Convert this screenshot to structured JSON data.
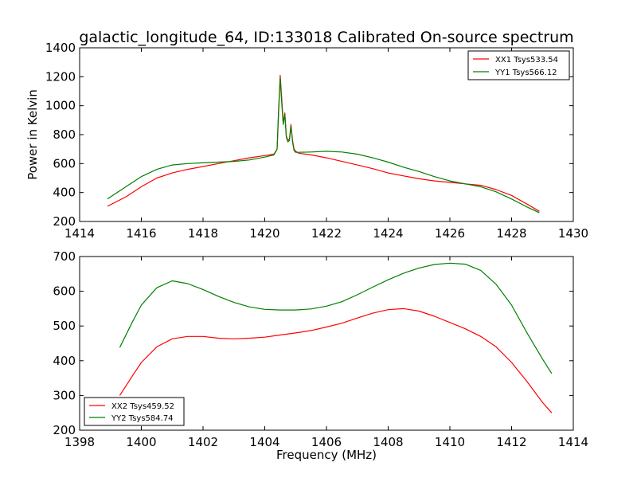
{
  "chart_data": [
    {
      "type": "line",
      "title": "galactic_longitude_64, ID:133018 Calibrated On-source spectrum",
      "xlabel": "",
      "ylabel": "Power in Kelvin",
      "xlim": [
        1414,
        1430
      ],
      "ylim": [
        200,
        1400
      ],
      "xticks": [
        1414,
        1416,
        1418,
        1420,
        1422,
        1424,
        1426,
        1428,
        1430
      ],
      "yticks": [
        200,
        400,
        600,
        800,
        1000,
        1200,
        1400
      ],
      "legend": "top-right",
      "series": [
        {
          "name": "XX1 Tsys533.54",
          "color": "#ff0000",
          "x": [
            1414.9,
            1415.5,
            1416.0,
            1416.5,
            1417.0,
            1417.5,
            1418.0,
            1418.5,
            1419.0,
            1419.5,
            1420.0,
            1420.3,
            1420.4,
            1420.45,
            1420.5,
            1420.55,
            1420.6,
            1420.65,
            1420.7,
            1420.75,
            1420.8,
            1420.85,
            1420.9,
            1420.95,
            1421.0,
            1421.1,
            1421.5,
            1422.0,
            1422.5,
            1423.0,
            1423.5,
            1424.0,
            1424.5,
            1425.0,
            1425.5,
            1426.0,
            1426.5,
            1427.0,
            1427.5,
            1428.0,
            1428.5,
            1428.9
          ],
          "values": [
            305,
            370,
            440,
            500,
            535,
            560,
            580,
            600,
            620,
            640,
            655,
            665,
            700,
            950,
            1210,
            1050,
            880,
            950,
            790,
            760,
            770,
            870,
            760,
            700,
            685,
            672,
            660,
            640,
            615,
            590,
            565,
            535,
            515,
            495,
            480,
            470,
            460,
            450,
            420,
            380,
            320,
            270
          ]
        },
        {
          "name": "YY1 Tsys566.12",
          "color": "#008000",
          "x": [
            1414.9,
            1415.5,
            1416.0,
            1416.5,
            1417.0,
            1417.5,
            1418.0,
            1418.5,
            1419.0,
            1419.5,
            1420.0,
            1420.3,
            1420.4,
            1420.45,
            1420.5,
            1420.55,
            1420.6,
            1420.65,
            1420.7,
            1420.75,
            1420.8,
            1420.85,
            1420.9,
            1420.95,
            1421.0,
            1421.1,
            1421.5,
            1422.0,
            1422.5,
            1423.0,
            1423.5,
            1424.0,
            1424.5,
            1425.0,
            1425.5,
            1426.0,
            1426.5,
            1427.0,
            1427.5,
            1428.0,
            1428.5,
            1428.9
          ],
          "values": [
            355,
            440,
            510,
            560,
            590,
            600,
            605,
            610,
            615,
            625,
            645,
            660,
            700,
            980,
            1190,
            1020,
            870,
            940,
            780,
            750,
            760,
            860,
            750,
            690,
            678,
            678,
            680,
            685,
            680,
            665,
            640,
            610,
            575,
            545,
            510,
            480,
            460,
            440,
            405,
            355,
            300,
            260
          ]
        }
      ]
    },
    {
      "type": "line",
      "title": "",
      "xlabel": "Frequency (MHz)",
      "ylabel": "",
      "xlim": [
        1398,
        1414
      ],
      "ylim": [
        200,
        700
      ],
      "xticks": [
        1398,
        1400,
        1402,
        1404,
        1406,
        1408,
        1410,
        1412,
        1414
      ],
      "yticks": [
        200,
        300,
        400,
        500,
        600,
        700
      ],
      "legend": "bottom-left",
      "series": [
        {
          "name": "XX2 Tsys459.52",
          "color": "#ff0000",
          "x": [
            1399.3,
            1399.7,
            1400.0,
            1400.5,
            1401.0,
            1401.5,
            1402.0,
            1402.5,
            1403.0,
            1403.5,
            1404.0,
            1404.5,
            1405.0,
            1405.5,
            1406.0,
            1406.5,
            1407.0,
            1407.5,
            1408.0,
            1408.5,
            1409.0,
            1409.5,
            1410.0,
            1410.5,
            1411.0,
            1411.5,
            1412.0,
            1412.5,
            1413.0,
            1413.3
          ],
          "values": [
            300,
            355,
            395,
            440,
            463,
            470,
            470,
            465,
            463,
            465,
            468,
            474,
            480,
            487,
            497,
            508,
            523,
            537,
            547,
            550,
            543,
            528,
            510,
            492,
            470,
            440,
            395,
            340,
            280,
            250
          ]
        },
        {
          "name": "YY2 Tsys584.74",
          "color": "#008000",
          "x": [
            1399.3,
            1399.7,
            1400.0,
            1400.5,
            1401.0,
            1401.5,
            1402.0,
            1402.5,
            1403.0,
            1403.5,
            1404.0,
            1404.5,
            1405.0,
            1405.5,
            1406.0,
            1406.5,
            1407.0,
            1407.5,
            1408.0,
            1408.5,
            1409.0,
            1409.5,
            1410.0,
            1410.5,
            1411.0,
            1411.5,
            1412.0,
            1412.5,
            1413.0,
            1413.3
          ],
          "values": [
            438,
            510,
            560,
            610,
            630,
            622,
            605,
            585,
            568,
            555,
            548,
            546,
            546,
            549,
            557,
            570,
            590,
            612,
            633,
            652,
            667,
            677,
            681,
            678,
            660,
            620,
            560,
            480,
            405,
            363
          ]
        }
      ]
    }
  ]
}
